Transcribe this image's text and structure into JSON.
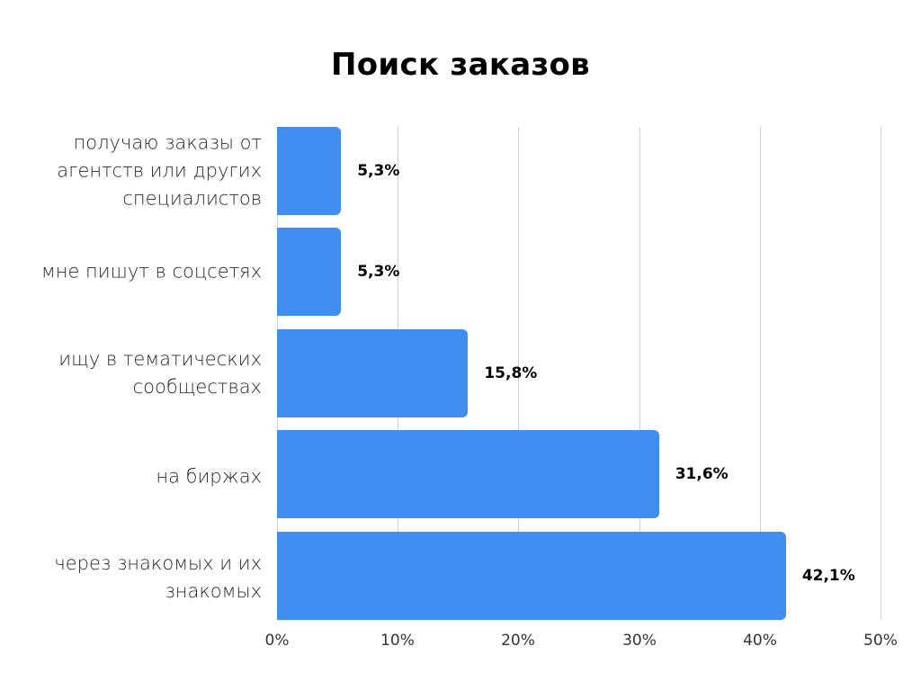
{
  "chart_data": {
    "type": "bar",
    "orientation": "horizontal",
    "title": "Поиск заказов",
    "categories": [
      "получаю заказы от агентств или других специалистов",
      "мне пишут в соцсетях",
      "ищу в тематических сообществах",
      "на биржах",
      "через знакомых и их знакомых"
    ],
    "values": [
      5.3,
      5.3,
      15.8,
      31.6,
      42.1
    ],
    "value_labels": [
      "5,3%",
      "5,3%",
      "15,8%",
      "31,6%",
      "42,1%"
    ],
    "xlabel": "",
    "ylabel": "",
    "xlim": [
      0,
      50
    ],
    "x_ticks": [
      "0%",
      "10%",
      "20%",
      "30%",
      "40%",
      "50%"
    ],
    "grid": "vertical",
    "bar_color": "#3f8ef0",
    "legend": null
  },
  "title": "Поиск заказов",
  "bars": [
    {
      "lines": [
        "получаю заказы от",
        "агентств или других",
        "специалистов"
      ],
      "value": 5.3,
      "label": "5,3%"
    },
    {
      "lines": [
        "мне пишут в соцсетях"
      ],
      "value": 5.3,
      "label": "5,3%"
    },
    {
      "lines": [
        "ищу в тематических",
        "сообществах"
      ],
      "value": 15.8,
      "label": "15,8%"
    },
    {
      "lines": [
        "на биржах"
      ],
      "value": 31.6,
      "label": "31,6%"
    },
    {
      "lines": [
        "через знакомых и их",
        "знакомых"
      ],
      "value": 42.1,
      "label": "42,1%"
    }
  ],
  "axis": {
    "ticks": [
      "0%",
      "10%",
      "20%",
      "30%",
      "40%",
      "50%"
    ]
  }
}
